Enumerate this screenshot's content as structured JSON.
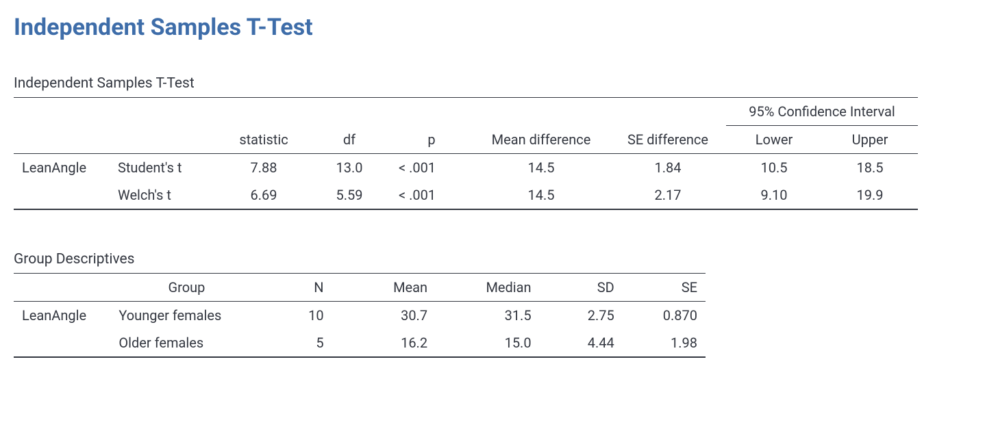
{
  "page_title": "Independent Samples T-Test",
  "ttest": {
    "table_title": "Independent Samples T-Test",
    "ci_header": "95% Confidence Interval",
    "columns": {
      "statistic": "statistic",
      "df": "df",
      "p": "p",
      "mean_diff": "Mean difference",
      "se_diff": "SE difference",
      "lower": "Lower",
      "upper": "Upper"
    },
    "variable": "LeanAngle",
    "rows": [
      {
        "method": "Student's t",
        "statistic": "7.88",
        "df": "13.0",
        "p": "< .001",
        "mean_diff": "14.5",
        "se_diff": "1.84",
        "lower": "10.5",
        "upper": "18.5"
      },
      {
        "method": "Welch's t",
        "statistic": "6.69",
        "df": "5.59",
        "p": "< .001",
        "mean_diff": "14.5",
        "se_diff": "2.17",
        "lower": "9.10",
        "upper": "19.9"
      }
    ]
  },
  "desc": {
    "table_title": "Group Descriptives",
    "columns": {
      "group": "Group",
      "n": "N",
      "mean": "Mean",
      "median": "Median",
      "sd": "SD",
      "se": "SE"
    },
    "variable": "LeanAngle",
    "rows": [
      {
        "group": "Younger females",
        "n": "10",
        "mean": "30.7",
        "median": "31.5",
        "sd": "2.75",
        "se": "0.870"
      },
      {
        "group": "Older females",
        "n": "5",
        "mean": "16.2",
        "median": "15.0",
        "sd": "4.44",
        "se": "1.98"
      }
    ]
  },
  "colors": {
    "title": "#3e6da9",
    "text": "#333740",
    "border": "#333740",
    "background": "#ffffff"
  }
}
